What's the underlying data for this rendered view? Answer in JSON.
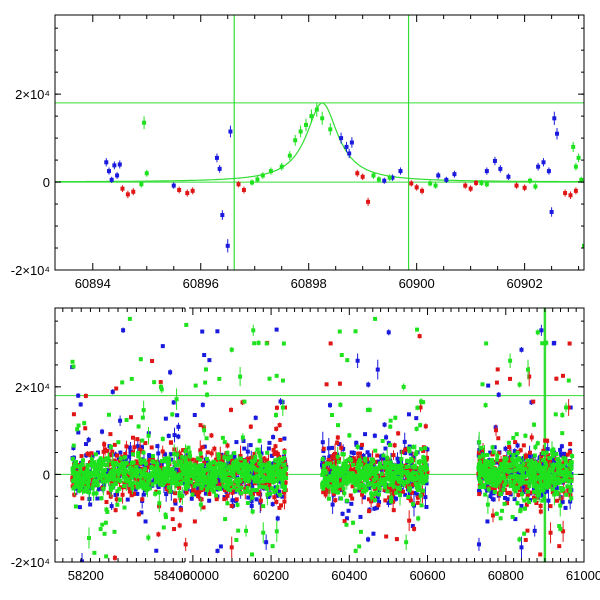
{
  "chart_data": [
    {
      "type": "scatter",
      "panel": "top",
      "xlim": [
        60893.3,
        60903.1
      ],
      "ylim": [
        -20000,
        38000
      ],
      "x_ticks": [
        60894,
        60896,
        60898,
        60900,
        60902
      ],
      "y_ticks": [
        -20000,
        0,
        20000
      ],
      "y_tick_labels": [
        "-2×10⁴",
        "0",
        "2×10⁴"
      ],
      "hlines": [
        0,
        18000
      ],
      "vlines": [
        60896.62,
        60899.85
      ],
      "model_curve": {
        "peak_x": 60898.25,
        "peak_y": 18000,
        "width_days": 0.45,
        "color": "#33dd33"
      },
      "series": [
        {
          "name": "blue",
          "color": "#1a1adf",
          "points": [
            [
              60894.25,
              4500
            ],
            [
              60894.3,
              2500
            ],
            [
              60894.35,
              500
            ],
            [
              60894.4,
              3800
            ],
            [
              60894.45,
              1500
            ],
            [
              60894.5,
              4000
            ],
            [
              60895.5,
              -800
            ],
            [
              60896.3,
              5500
            ],
            [
              60896.35,
              3000
            ],
            [
              60896.4,
              -7500
            ],
            [
              60896.5,
              -14500
            ],
            [
              60896.55,
              11500
            ],
            [
              60898.6,
              10000
            ],
            [
              60898.7,
              8000
            ],
            [
              60898.75,
              6500
            ],
            [
              60898.8,
              9000
            ],
            [
              60899.4,
              300
            ],
            [
              60899.55,
              1000
            ],
            [
              60899.7,
              2500
            ],
            [
              60900.4,
              1500
            ],
            [
              60900.55,
              500
            ],
            [
              60900.7,
              1800
            ],
            [
              60901.3,
              2500
            ],
            [
              60901.45,
              4800
            ],
            [
              60901.55,
              3000
            ],
            [
              60901.7,
              1200
            ],
            [
              60902.25,
              3500
            ],
            [
              60902.35,
              4500
            ],
            [
              60902.45,
              2500
            ],
            [
              60902.55,
              14500
            ],
            [
              60902.6,
              11000
            ],
            [
              60902.5,
              -6800
            ]
          ]
        },
        {
          "name": "red",
          "color": "#e01616",
          "points": [
            [
              60894.55,
              -1500
            ],
            [
              60894.65,
              -2800
            ],
            [
              60894.75,
              -2200
            ],
            [
              60895.6,
              -1800
            ],
            [
              60895.75,
              -2500
            ],
            [
              60895.85,
              -2000
            ],
            [
              60896.7,
              -500
            ],
            [
              60896.8,
              -1800
            ],
            [
              60898.9,
              2000
            ],
            [
              60899.0,
              1200
            ],
            [
              60899.1,
              -4500
            ],
            [
              60899.9,
              -300
            ],
            [
              60900.0,
              -1200
            ],
            [
              60900.1,
              -2000
            ],
            [
              60900.9,
              -800
            ],
            [
              60901.0,
              -1500
            ],
            [
              60901.1,
              -200
            ],
            [
              60901.85,
              -800
            ],
            [
              60902.0,
              -1300
            ],
            [
              60902.75,
              -2500
            ],
            [
              60902.85,
              -3000
            ],
            [
              60902.95,
              -2000
            ]
          ]
        },
        {
          "name": "green",
          "color": "#1fe21f",
          "points": [
            [
              60894.95,
              13500
            ],
            [
              60895.0,
              2000
            ],
            [
              60894.9,
              -500
            ],
            [
              60896.95,
              -100
            ],
            [
              60897.05,
              600
            ],
            [
              60897.15,
              1500
            ],
            [
              60897.3,
              2500
            ],
            [
              60897.5,
              3500
            ],
            [
              60897.65,
              6000
            ],
            [
              60897.75,
              9500
            ],
            [
              60897.85,
              11500
            ],
            [
              60897.95,
              13000
            ],
            [
              60898.05,
              15000
            ],
            [
              60898.15,
              16500
            ],
            [
              60898.25,
              14500
            ],
            [
              60898.4,
              12000
            ],
            [
              60899.2,
              1500
            ],
            [
              60899.3,
              600
            ],
            [
              60899.5,
              1000
            ],
            [
              60900.25,
              -300
            ],
            [
              60900.35,
              -800
            ],
            [
              60901.2,
              -200
            ],
            [
              60901.3,
              -500
            ],
            [
              60902.1,
              300
            ],
            [
              60902.2,
              -1000
            ],
            [
              60902.9,
              8000
            ],
            [
              60902.95,
              3500
            ],
            [
              60903.0,
              5500
            ],
            [
              60903.05,
              500
            ],
            [
              60903.1,
              -14500
            ]
          ]
        }
      ]
    },
    {
      "type": "scatter",
      "panel": "bottom",
      "xlim": [
        58120,
        61010
      ],
      "ylim": [
        -20000,
        38000
      ],
      "axis_break_after": 58420,
      "x_ticks": [
        58200,
        58400,
        60000,
        60200,
        60400,
        60600,
        60800,
        61000
      ],
      "y_ticks": [
        -20000,
        0,
        20000
      ],
      "y_tick_labels": [
        "-2×10⁴",
        "0",
        "2×10⁴"
      ],
      "hlines": [
        0,
        18000
      ],
      "vlines": [
        60900
      ],
      "seasons": [
        [
          58170,
          58420
        ],
        [
          59980,
          60240
        ],
        [
          60330,
          60600
        ],
        [
          60730,
          60970
        ]
      ],
      "series": [
        {
          "name": "blue",
          "color": "#1a1adf"
        },
        {
          "name": "red",
          "color": "#e01616"
        },
        {
          "name": "green",
          "color": "#1fe21f"
        }
      ]
    }
  ]
}
